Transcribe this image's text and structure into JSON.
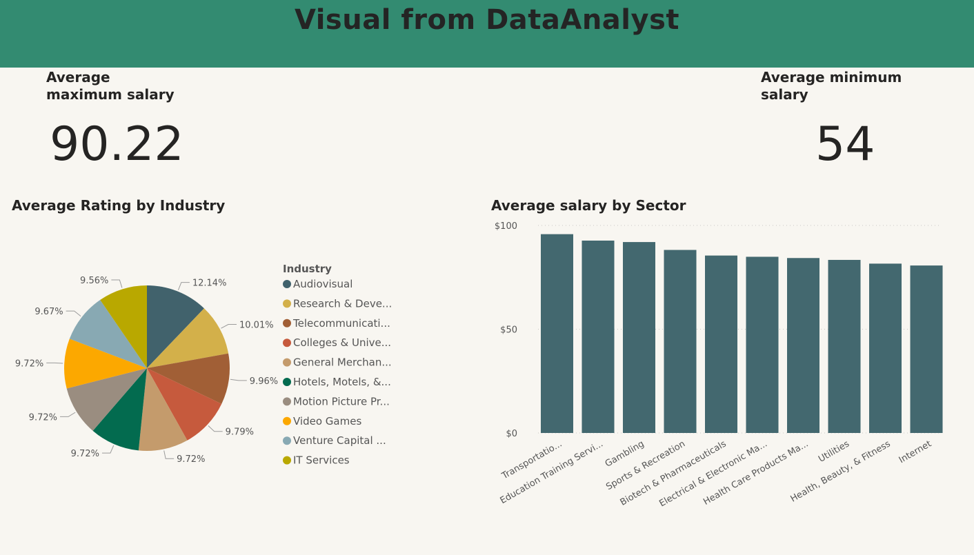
{
  "header": {
    "title": "Visual from DataAnalyst"
  },
  "cards": {
    "max_salary": {
      "label_line1": "Average",
      "label_line2": "maximum salary",
      "value": "90.22"
    },
    "min_salary": {
      "label_line1": "Average minimum",
      "label_line2": "salary",
      "value": "54"
    }
  },
  "colors": {
    "header": "#338b71",
    "background": "#f8f6f1",
    "bar": "#43686f"
  },
  "chart_data": [
    {
      "type": "pie",
      "title": "Average Rating by Industry",
      "legend_title": "Industry",
      "legend_position": "right",
      "slices": [
        {
          "label": "Audiovisual",
          "legend_text": "Audiovisual",
          "value": 12.14,
          "pct_label": "12.14%",
          "color": "#41626c"
        },
        {
          "label": "Research & Development",
          "legend_text": "Research & Deve...",
          "value": 10.01,
          "pct_label": "10.01%",
          "color": "#d3b04a"
        },
        {
          "label": "Telecommunications",
          "legend_text": "Telecommunicati...",
          "value": 9.96,
          "pct_label": "9.96%",
          "color": "#a15f36"
        },
        {
          "label": "Colleges & Universities",
          "legend_text": "Colleges & Unive...",
          "value": 9.79,
          "pct_label": "9.79%",
          "color": "#c65a3d"
        },
        {
          "label": "General Merchandise",
          "legend_text": "General Merchan...",
          "value": 9.72,
          "pct_label": "9.72%",
          "color": "#c49b6c"
        },
        {
          "label": "Hotels, Motels, & Resorts",
          "legend_text": "Hotels, Motels, &...",
          "value": 9.72,
          "pct_label": "9.72%",
          "color": "#036b4f"
        },
        {
          "label": "Motion Picture Production",
          "legend_text": "Motion Picture Pr...",
          "value": 9.72,
          "pct_label": "9.72%",
          "color": "#9a8d80"
        },
        {
          "label": "Video Games",
          "legend_text": "Video Games",
          "value": 9.72,
          "pct_label": "9.72%",
          "color": "#fca800"
        },
        {
          "label": "Venture Capital",
          "legend_text": "Venture Capital ...",
          "value": 9.67,
          "pct_label": "9.67%",
          "color": "#88a9b3"
        },
        {
          "label": "IT Services",
          "legend_text": "IT Services",
          "value": 9.56,
          "pct_label": "9.56%",
          "color": "#b9a800"
        }
      ]
    },
    {
      "type": "bar",
      "title": "Average salary by Sector",
      "ylim": [
        0,
        100
      ],
      "yticks": [
        {
          "value": 0,
          "label": "$0"
        },
        {
          "value": 50,
          "label": "$50"
        },
        {
          "value": 100,
          "label": "$100"
        }
      ],
      "grid": true,
      "categories": [
        "Transportatio...",
        "Education Training Servi...",
        "Gambling",
        "Sports & Recreation",
        "Biotech & Pharmaceuticals",
        "Electrical & Electronic Ma...",
        "Health Care Products Ma...",
        "Utilities",
        "Health, Beauty, & Fitness",
        "Internet"
      ],
      "values": [
        95.8,
        92.7,
        92.0,
        88.2,
        85.5,
        84.9,
        84.3,
        83.4,
        81.6,
        80.7
      ]
    }
  ]
}
